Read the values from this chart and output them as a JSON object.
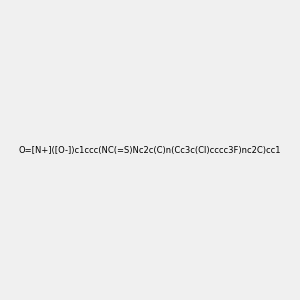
{
  "smiles": "O=[N+]([O-])c1ccc(NC(=S)Nc2c(C)n(Cc3c(Cl)cccc3F)nc2C)cc1",
  "image_size": 300,
  "background_color": "#f0f0f0",
  "title": ""
}
